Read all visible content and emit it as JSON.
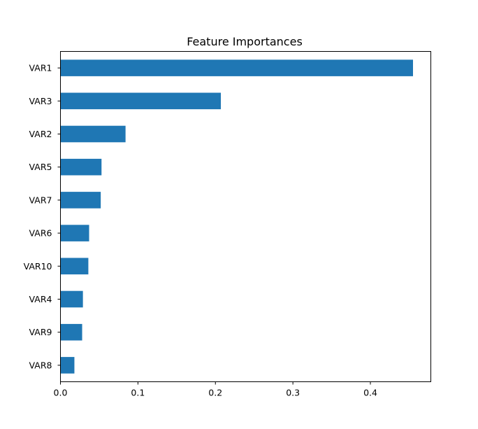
{
  "chart_data": {
    "type": "bar",
    "orientation": "horizontal",
    "title": "Feature Importances",
    "xlabel": "",
    "ylabel": "",
    "categories": [
      "VAR1",
      "VAR3",
      "VAR2",
      "VAR5",
      "VAR7",
      "VAR6",
      "VAR10",
      "VAR4",
      "VAR9",
      "VAR8"
    ],
    "values": [
      0.455,
      0.207,
      0.084,
      0.053,
      0.052,
      0.037,
      0.036,
      0.029,
      0.028,
      0.018
    ],
    "xlim": [
      0,
      0.478
    ],
    "xticks": [
      0.0,
      0.1,
      0.2,
      0.3,
      0.4
    ],
    "xtick_labels": [
      "0.0",
      "0.1",
      "0.2",
      "0.3",
      "0.4"
    ],
    "grid": false,
    "bar_color": "#1f77b4"
  }
}
